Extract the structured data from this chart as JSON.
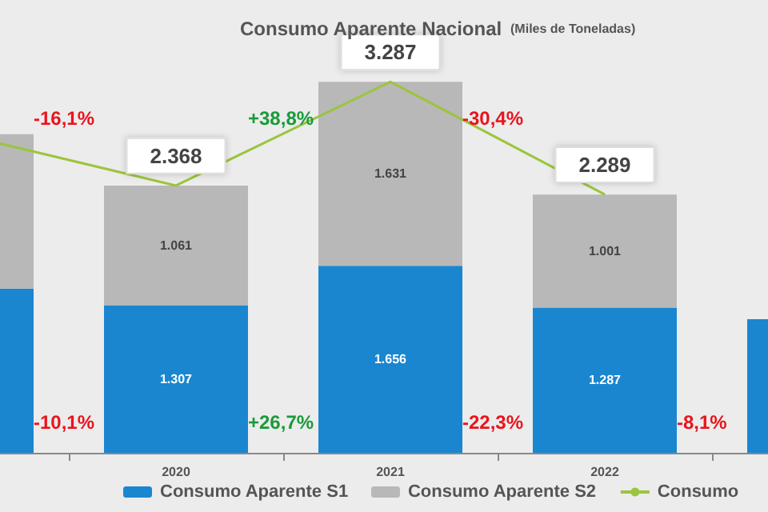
{
  "chart_data": {
    "type": "bar",
    "title": "Consumo Aparente Nacional",
    "subtitle": "(Miles de Toneladas)",
    "categories": [
      null,
      "2020",
      "2021",
      "2022",
      null
    ],
    "stacked": true,
    "ylim": [
      0,
      3700
    ],
    "tick_labels": "x",
    "legend": "bottom",
    "series": [
      {
        "name": "Consumo Aparente S1",
        "color": "#1a86d0",
        "values": [
          1454,
          1307,
          1656,
          1287,
          1183
        ],
        "value_labels": [
          null,
          "1.307",
          "1.656",
          "1.287",
          null
        ]
      },
      {
        "name": "Consumo Aparente S2",
        "color": "#b8b8b8",
        "values": [
          1368,
          1061,
          1631,
          1001,
          null
        ],
        "value_labels": [
          null,
          "1.061",
          "1.631",
          "1.001",
          null
        ]
      },
      {
        "name": "Consumo",
        "type": "line",
        "color": "#9bc53d",
        "values": [
          2822,
          2368,
          3287,
          2289,
          null
        ],
        "value_labels": [
          null,
          "2.368",
          "3.287",
          "2.289",
          null
        ]
      }
    ],
    "annotations": [
      "-16,1%",
      "+38,8%",
      "-30,4%",
      "-10,1%",
      "+26,7%",
      "-22,3%",
      "-8,1%"
    ]
  }
}
